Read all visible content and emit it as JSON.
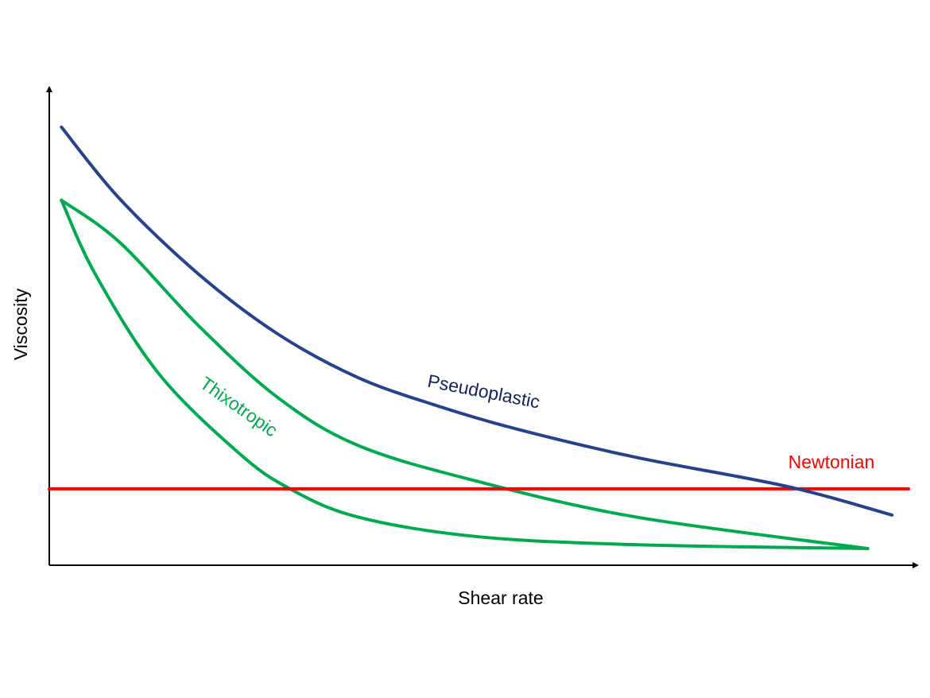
{
  "chart_data": {
    "type": "line",
    "title": "",
    "xlabel": "Shear rate",
    "ylabel": "Viscosity",
    "xlim": [
      0,
      100
    ],
    "ylim": [
      0,
      100
    ],
    "grid": false,
    "units": "arbitrary (qualitative diagram, no tick labels)",
    "series": [
      {
        "name": "Pseudoplastic",
        "color": "#24438c",
        "label_color": "#13235e",
        "x": [
          1.4,
          8.1,
          17.2,
          26.3,
          35.5,
          44.6,
          53.8,
          67.5,
          84.9,
          97.0
        ],
        "y": [
          91.7,
          76.7,
          60.9,
          48.4,
          39.3,
          33.4,
          28.5,
          22.6,
          16.5,
          10.5
        ]
      },
      {
        "name": "Newtonian",
        "color": "#ff0000",
        "label_color": "#ff0000",
        "x": [
          0,
          98.9
        ],
        "y": [
          16.0,
          16.0
        ]
      },
      {
        "name": "Thixotropic",
        "color": "#00aa4f",
        "label_color": "#00aa4f",
        "branches": [
          {
            "x": [
              1.4,
              8.1,
              17.2,
              26.3,
              35.5,
              49.2,
              67.5,
              94.2
            ],
            "y": [
              76.4,
              67.6,
              50.1,
              35.1,
              25.1,
              17.6,
              10.1,
              3.5
            ]
          },
          {
            "x": [
              1.4,
              5.3,
              12.6,
              21.8,
              27.7,
              35.5,
              49.2,
              67.5,
              94.2
            ],
            "y": [
              76.4,
              60.9,
              40.1,
              23.5,
              16.0,
              10.1,
              6.0,
              4.3,
              3.5
            ]
          }
        ]
      }
    ]
  }
}
